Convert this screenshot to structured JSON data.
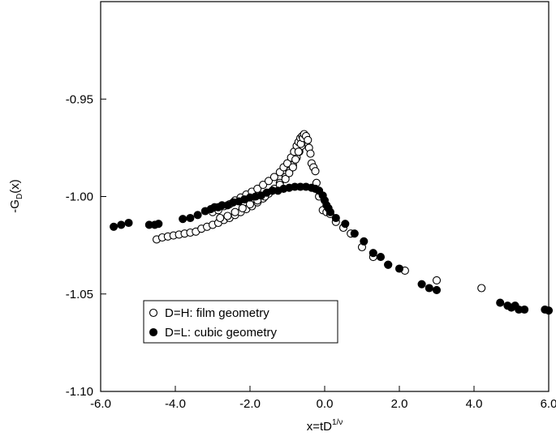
{
  "chart_data": {
    "type": "scatter",
    "xlabel": {
      "base": "x=tD",
      "sup": "1/ν"
    },
    "ylabel": {
      "base": "-G",
      "sub": "D",
      "tail": "(x)"
    },
    "xlim": [
      -6.0,
      6.0
    ],
    "ylim": [
      -1.1,
      -0.9
    ],
    "xticks": [
      -6.0,
      -4.0,
      -2.0,
      0.0,
      2.0,
      4.0,
      6.0
    ],
    "xtick_labels": [
      "-6.0",
      "-4.0",
      "-2.0",
      "0.0",
      "2.0",
      "4.0",
      "6.0"
    ],
    "yticks": [
      -1.1,
      -1.05,
      -1.0,
      -0.95
    ],
    "ytick_labels": [
      "-1.10",
      "-1.05",
      "-1.00",
      "-0.95"
    ],
    "grid": false,
    "legend_position": "bottom-left",
    "series": [
      {
        "name": "D=H: film geometry",
        "marker": "open-circle",
        "color": "#000000",
        "x": [
          -4.5,
          -4.35,
          -4.2,
          -4.05,
          -3.9,
          -3.75,
          -3.6,
          -3.45,
          -3.3,
          -3.15,
          -3.0,
          -2.85,
          -2.7,
          -2.55,
          -2.4,
          -2.25,
          -2.1,
          -1.95,
          -1.8,
          -1.65,
          -1.5,
          -1.35,
          -1.2,
          -1.05,
          -0.95,
          -0.85,
          -0.75,
          -0.68,
          -0.62,
          -0.56,
          -3.0,
          -2.85,
          -2.7,
          -2.55,
          -2.4,
          -2.25,
          -2.1,
          -1.95,
          -1.8,
          -1.65,
          -1.5,
          -1.35,
          -1.2,
          -1.1,
          -1.0,
          -0.9,
          -0.82,
          -0.75,
          -0.7,
          -0.65,
          -0.6,
          -2.8,
          -2.6,
          -2.4,
          -2.2,
          -2.0,
          -1.8,
          -1.6,
          -1.4,
          -1.2,
          -1.05,
          -0.95,
          -0.85,
          -0.78,
          -0.7,
          -0.64,
          -0.58,
          -0.55,
          -0.5,
          -0.45,
          -0.42,
          -0.38,
          -0.35,
          -0.3,
          -0.25,
          -0.22,
          -0.15,
          -0.05,
          0.05,
          0.15,
          0.3,
          0.5,
          0.7,
          1.0,
          1.3,
          1.7,
          2.15,
          3.0,
          4.2
        ],
        "y": [
          -1.022,
          -1.021,
          -1.0205,
          -1.02,
          -1.0195,
          -1.019,
          -1.0185,
          -1.018,
          -1.0165,
          -1.0155,
          -1.0145,
          -1.0135,
          -1.012,
          -1.011,
          -1.0095,
          -1.008,
          -1.0065,
          -1.005,
          -1.003,
          -1.001,
          -0.9985,
          -0.996,
          -0.993,
          -0.99,
          -0.987,
          -0.984,
          -0.98,
          -0.977,
          -0.974,
          -0.971,
          -1.008,
          -1.007,
          -1.005,
          -1.004,
          -1.002,
          -1.0005,
          -0.999,
          -0.9975,
          -0.996,
          -0.994,
          -0.992,
          -0.99,
          -0.9875,
          -0.985,
          -0.983,
          -0.98,
          -0.977,
          -0.974,
          -0.972,
          -0.97,
          -0.969,
          -1.011,
          -1.01,
          -1.008,
          -1.006,
          -1.004,
          -1.002,
          -1.0,
          -0.997,
          -0.994,
          -0.991,
          -0.988,
          -0.985,
          -0.981,
          -0.977,
          -0.973,
          -0.97,
          -0.968,
          -0.969,
          -0.971,
          -0.975,
          -0.978,
          -0.983,
          -0.985,
          -0.987,
          -0.993,
          -1.0,
          -1.007,
          -1.008,
          -1.009,
          -1.013,
          -1.016,
          -1.019,
          -1.026,
          -1.031,
          -1.035,
          -1.038,
          -1.043,
          -1.047
        ]
      },
      {
        "name": "D=L: cubic geometry",
        "marker": "filled-circle",
        "color": "#000000",
        "x": [
          -5.65,
          -5.45,
          -5.25,
          -4.7,
          -4.55,
          -4.45,
          -3.8,
          -3.6,
          -3.4,
          -3.2,
          -3.05,
          -2.95,
          -2.85,
          -2.75,
          -2.6,
          -2.45,
          -2.3,
          -2.15,
          -2.0,
          -1.85,
          -1.7,
          -1.55,
          -1.4,
          -1.25,
          -1.1,
          -0.95,
          -0.8,
          -0.65,
          -0.5,
          -0.35,
          -0.25,
          -0.15,
          -0.05,
          0.0,
          0.05,
          0.1,
          0.15,
          0.3,
          0.55,
          0.8,
          1.05,
          1.3,
          1.5,
          1.7,
          2.0,
          2.6,
          2.8,
          3.0,
          4.7,
          4.9,
          5.0,
          5.1,
          5.2,
          5.35,
          5.9,
          6.0
        ],
        "y": [
          -1.0155,
          -1.0145,
          -1.0135,
          -1.0145,
          -1.0145,
          -1.014,
          -1.0115,
          -1.011,
          -1.0095,
          -1.0075,
          -1.0065,
          -1.0055,
          -1.0055,
          -1.0045,
          -1.0045,
          -1.003,
          -1.0025,
          -1.0015,
          -1.0005,
          -1.0,
          -0.9995,
          -0.998,
          -0.997,
          -0.997,
          -0.996,
          -0.9955,
          -0.995,
          -0.995,
          -0.995,
          -0.9955,
          -0.996,
          -0.997,
          -0.9995,
          -1.002,
          -1.0045,
          -1.006,
          -1.008,
          -1.011,
          -1.014,
          -1.019,
          -1.023,
          -1.029,
          -1.031,
          -1.035,
          -1.037,
          -1.045,
          -1.047,
          -1.048,
          -1.0545,
          -1.056,
          -1.057,
          -1.056,
          -1.058,
          -1.058,
          -1.058,
          -1.0585
        ]
      }
    ]
  }
}
